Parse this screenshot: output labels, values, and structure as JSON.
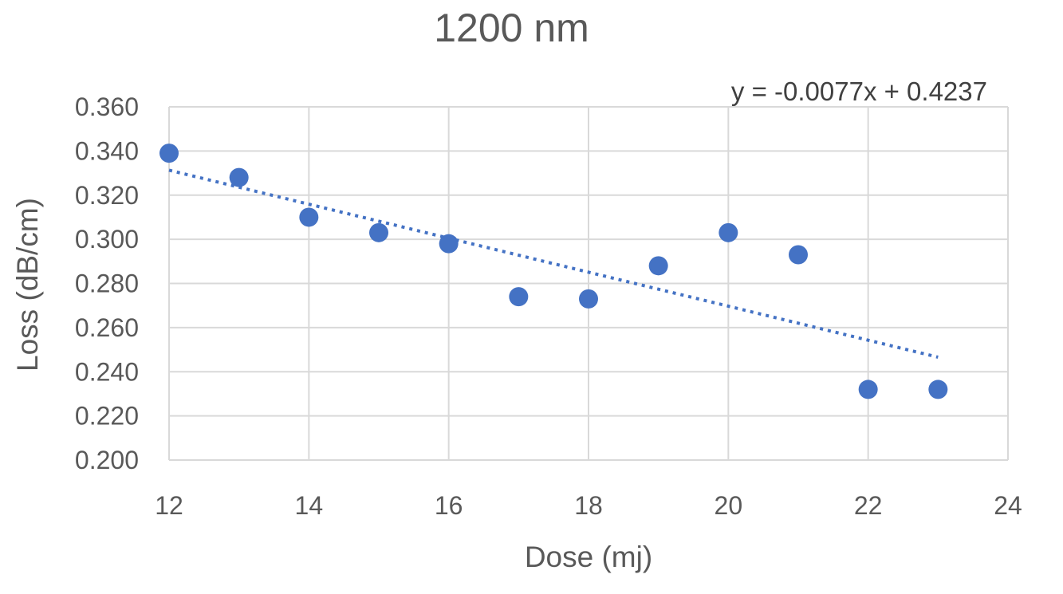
{
  "chart_data": {
    "type": "scatter",
    "title": "1200 nm",
    "xlabel": "Dose (mj)",
    "ylabel": "Loss (dB/cm)",
    "xlim": [
      12,
      24
    ],
    "ylim": [
      0.2,
      0.36
    ],
    "x_ticks": [
      "12",
      "14",
      "16",
      "18",
      "20",
      "22",
      "24"
    ],
    "y_ticks": [
      "0.200",
      "0.220",
      "0.240",
      "0.260",
      "0.280",
      "0.300",
      "0.320",
      "0.340",
      "0.360"
    ],
    "x_tick_values": [
      12,
      14,
      16,
      18,
      20,
      22,
      24
    ],
    "y_tick_values": [
      0.2,
      0.22,
      0.24,
      0.26,
      0.28,
      0.3,
      0.32,
      0.34,
      0.36
    ],
    "grid": true,
    "legend": "none",
    "series": [
      {
        "x": [
          12,
          13,
          14,
          15,
          16,
          17,
          18,
          19,
          20,
          21,
          22,
          23
        ],
        "y": [
          0.339,
          0.328,
          0.31,
          0.303,
          0.298,
          0.274,
          0.273,
          0.288,
          0.303,
          0.293,
          0.232,
          0.232
        ],
        "color": "#4472C4"
      }
    ],
    "trendline": {
      "type": "linear",
      "slope": -0.0077,
      "intercept": 0.4237,
      "x_range": [
        12,
        23
      ],
      "style": "dotted",
      "color": "#4472C4",
      "equation": "y = -0.0077x + 0.4237"
    }
  }
}
